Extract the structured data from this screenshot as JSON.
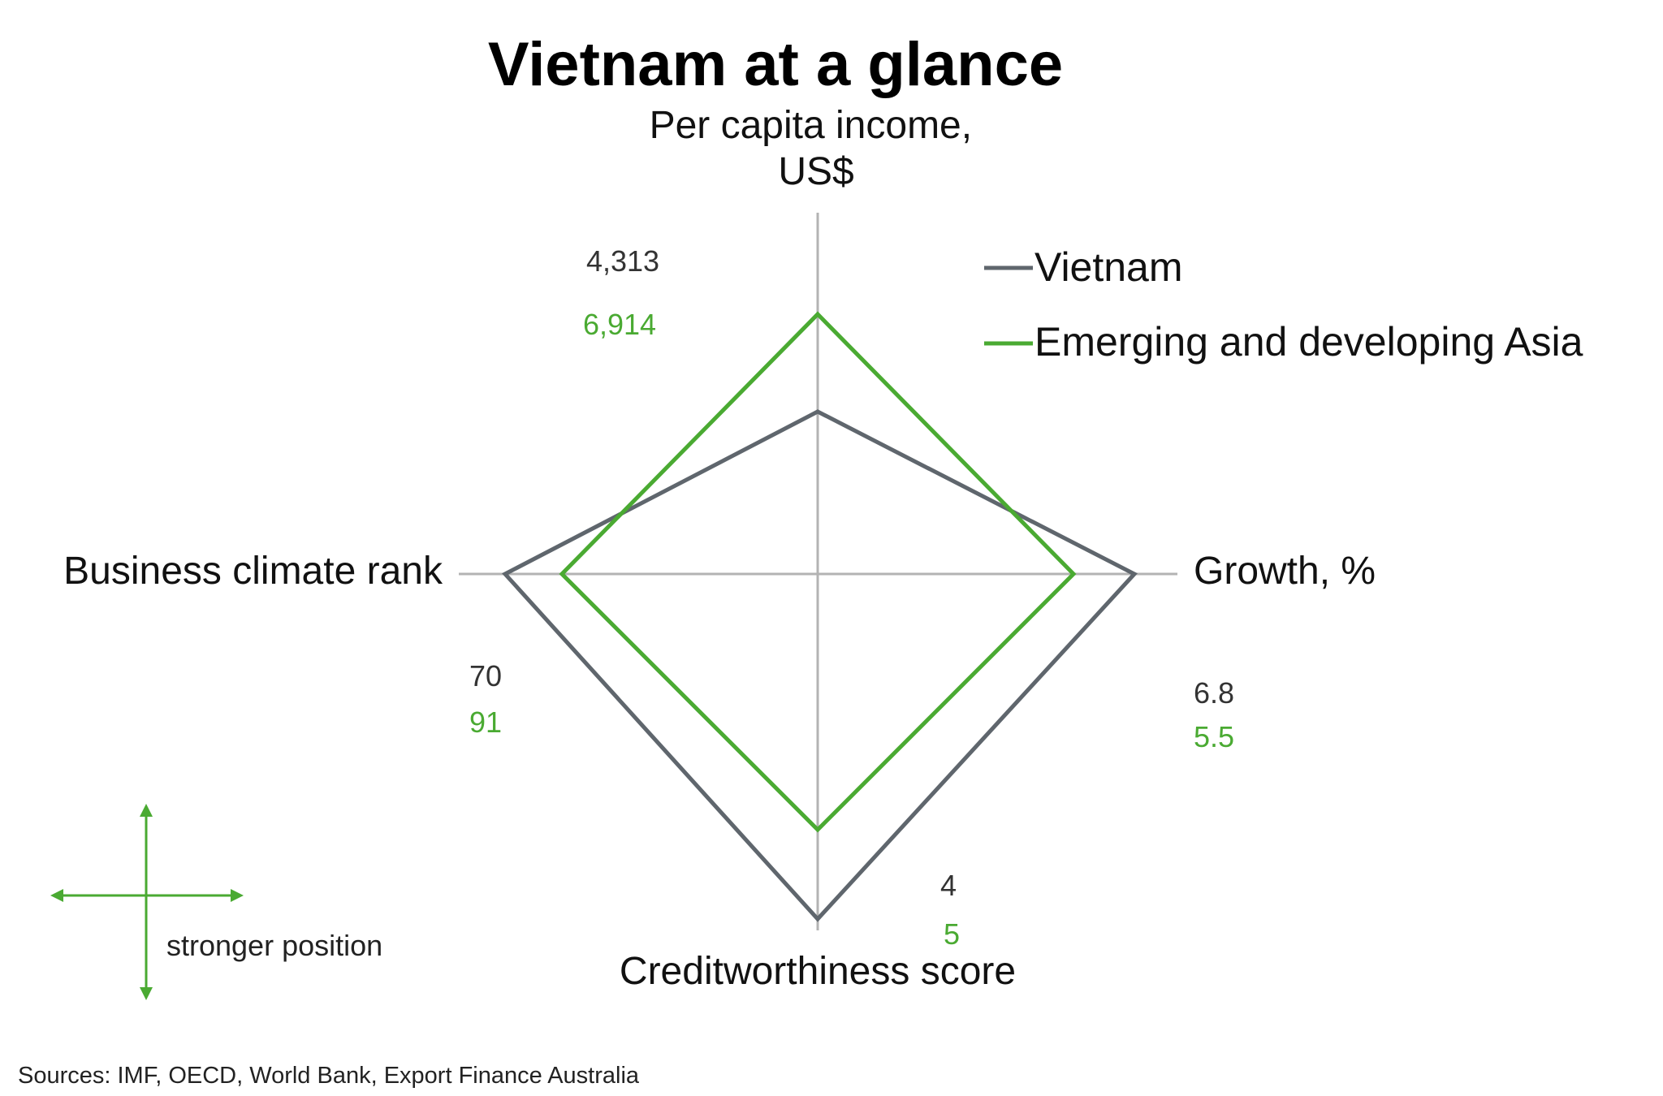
{
  "chart_data": {
    "type": "radar",
    "title": "Vietnam at a glance",
    "axes": [
      {
        "key": "income",
        "label_lines": [
          "Per capita income,",
          "US$"
        ]
      },
      {
        "key": "growth",
        "label_lines": [
          "Growth, %"
        ]
      },
      {
        "key": "credit",
        "label_lines": [
          "Creditworthiness score"
        ]
      },
      {
        "key": "business",
        "label_lines": [
          "Business climate rank"
        ]
      }
    ],
    "series": [
      {
        "name": "Vietnam",
        "color": "#5f666d",
        "values": {
          "income": 4313,
          "growth": 6.8,
          "credit": 4,
          "business": 70
        },
        "labels": {
          "income": "4,313",
          "growth": "6.8",
          "credit": "4",
          "business": "70"
        }
      },
      {
        "name": "Emerging and developing Asia",
        "color": "#4aaa32",
        "values": {
          "income": 6914,
          "growth": 5.5,
          "credit": 5,
          "business": 91
        },
        "labels": {
          "income": "6,914",
          "growth": "5.5",
          "credit": "5",
          "business": "91"
        }
      }
    ],
    "legend_position": "top-right",
    "grid": false
  },
  "direction_note": "stronger position",
  "source": "Sources: IMF, OECD, World Bank, Export Finance Australia",
  "colors": {
    "axis": "#b3b3b3",
    "arrow": "#4aaa32"
  }
}
